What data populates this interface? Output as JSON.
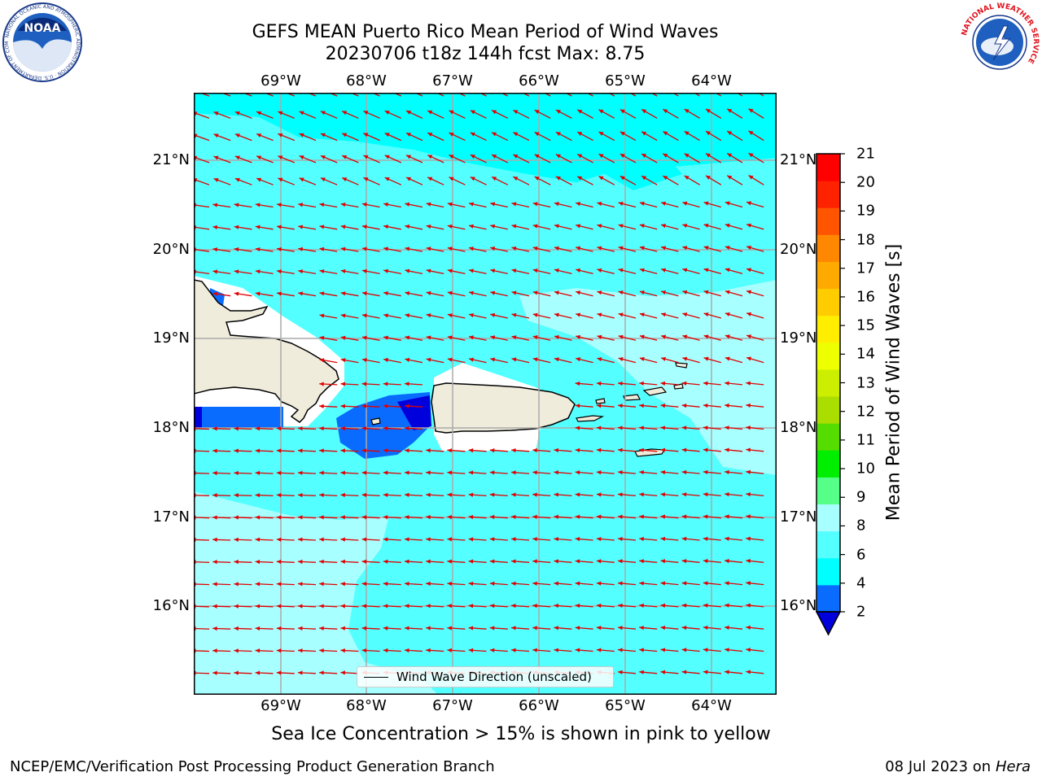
{
  "title": {
    "line1": "GEFS MEAN Puerto Rico Mean Period of Wind Waves",
    "line2": "20230706 t18z 144h fcst   Max: 8.75"
  },
  "logos": {
    "noaa_text": "NOAA",
    "noaa_ring_text": "NATIONAL OCEANIC AND ATMOSPHERIC ADMINISTRATION · U.S. DEPARTMENT OF COMMERCE",
    "nws_ring_text": "NATIONAL WEATHER SERVICE"
  },
  "map": {
    "lon_labels": [
      "69°W",
      "68°W",
      "67°W",
      "66°W",
      "65°W",
      "64°W"
    ],
    "lat_labels": [
      "21°N",
      "20°N",
      "19°N",
      "18°N",
      "17°N",
      "16°N"
    ],
    "legend_label": "Wind Wave Direction (unscaled)",
    "arrow_color": "#e00000",
    "land_color": "#efecdc"
  },
  "colorbar": {
    "title": "Mean Period of Wind Waves [s]",
    "ticks": [
      "2",
      "4",
      "6",
      "8",
      "9",
      "10",
      "11",
      "12",
      "13",
      "14",
      "15",
      "16",
      "17",
      "18",
      "19",
      "20",
      "21"
    ],
    "colors": [
      "#0000dd",
      "#0a6cff",
      "#00ffff",
      "#53ffff",
      "#a8ffff",
      "#55ff88",
      "#00ee00",
      "#55dd00",
      "#aadd00",
      "#ccee00",
      "#eeff00",
      "#ffee00",
      "#ffcc00",
      "#ffaa00",
      "#ff8800",
      "#ff5500",
      "#ff2200",
      "#ff0000"
    ]
  },
  "subtitle": "Sea Ice Concentration > 15% is shown in pink to yellow",
  "footer": {
    "left": "NCEP/EMC/Verification Post Processing Product Generation Branch",
    "right_date": "08 Jul 2023 on ",
    "right_host": "Hera"
  }
}
